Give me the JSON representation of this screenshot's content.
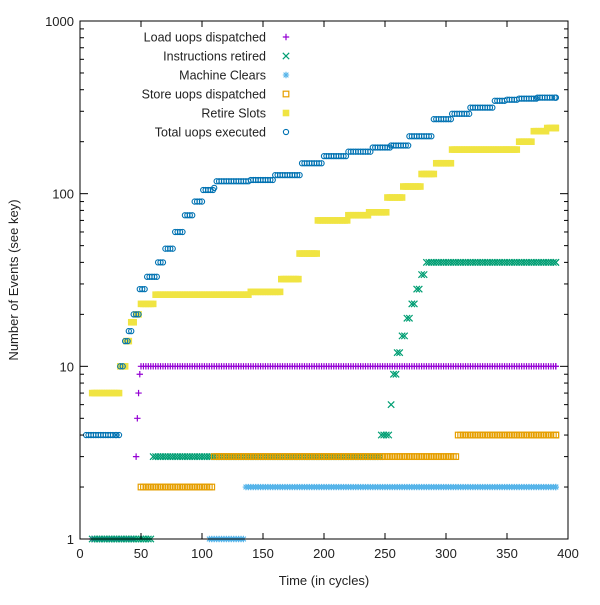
{
  "chart_data": {
    "type": "scatter",
    "title": "",
    "xlabel": "Time (in cycles)",
    "ylabel": "Number of Events (see key)",
    "xlim": [
      0,
      400
    ],
    "ylim": [
      1,
      1000
    ],
    "yscale": "log",
    "grid": false,
    "legend_position": "top-left",
    "xticks": [
      0,
      50,
      100,
      150,
      200,
      250,
      300,
      350,
      400
    ],
    "yticks": [
      1,
      10,
      100,
      1000
    ],
    "series": [
      {
        "name": "Load uops dispatched",
        "marker": "plus",
        "color": "#9400d3",
        "steps": [
          [
            10,
            1
          ],
          [
            46,
            3
          ],
          [
            47,
            5
          ],
          [
            48,
            7
          ],
          [
            49,
            9
          ],
          [
            50,
            10
          ],
          [
            390,
            10
          ]
        ]
      },
      {
        "name": "Instructions retired",
        "marker": "cross",
        "color": "#009e73",
        "steps": [
          [
            10,
            1
          ],
          [
            60,
            3
          ],
          [
            247,
            4
          ],
          [
            255,
            6
          ],
          [
            257,
            9
          ],
          [
            260,
            12
          ],
          [
            264,
            15
          ],
          [
            268,
            19
          ],
          [
            272,
            23
          ],
          [
            276,
            28
          ],
          [
            280,
            34
          ],
          [
            284,
            40
          ],
          [
            390,
            40
          ]
        ]
      },
      {
        "name": "Machine Clears",
        "marker": "star",
        "color": "#56b4e9",
        "steps": [
          [
            106,
            1
          ],
          [
            136,
            2
          ],
          [
            390,
            2
          ]
        ]
      },
      {
        "name": "Store uops dispatched",
        "marker": "square-open",
        "color": "#e69f00",
        "steps": [
          [
            50,
            2
          ],
          [
            110,
            3
          ],
          [
            310,
            4
          ],
          [
            390,
            4
          ]
        ]
      },
      {
        "name": "Retire Slots",
        "marker": "square-filled",
        "color": "#f0e442",
        "steps": [
          [
            10,
            7
          ],
          [
            33,
            10
          ],
          [
            38,
            14
          ],
          [
            42,
            18
          ],
          [
            46,
            20
          ],
          [
            50,
            23
          ],
          [
            62,
            26
          ],
          [
            140,
            27
          ],
          [
            165,
            32
          ],
          [
            180,
            45
          ],
          [
            195,
            70
          ],
          [
            220,
            75
          ],
          [
            237,
            78
          ],
          [
            252,
            95
          ],
          [
            265,
            110
          ],
          [
            280,
            130
          ],
          [
            292,
            150
          ],
          [
            305,
            180
          ],
          [
            350,
            180
          ],
          [
            360,
            200
          ],
          [
            372,
            230
          ],
          [
            383,
            240
          ],
          [
            390,
            240
          ]
        ]
      },
      {
        "name": "Total uops executed",
        "marker": "circle-open",
        "color": "#0072b2",
        "steps": [
          [
            5,
            4
          ],
          [
            30,
            4
          ],
          [
            33,
            10
          ],
          [
            37,
            14
          ],
          [
            40,
            16
          ],
          [
            44,
            20
          ],
          [
            49,
            28
          ],
          [
            55,
            33
          ],
          [
            64,
            40
          ],
          [
            70,
            48
          ],
          [
            78,
            60
          ],
          [
            86,
            75
          ],
          [
            94,
            90
          ],
          [
            101,
            105
          ],
          [
            110,
            108
          ],
          [
            112,
            118
          ],
          [
            140,
            120
          ],
          [
            160,
            128
          ],
          [
            182,
            150
          ],
          [
            200,
            165
          ],
          [
            220,
            175
          ],
          [
            240,
            185
          ],
          [
            255,
            190
          ],
          [
            270,
            215
          ],
          [
            290,
            270
          ],
          [
            305,
            290
          ],
          [
            320,
            315
          ],
          [
            340,
            345
          ],
          [
            350,
            350
          ],
          [
            360,
            355
          ],
          [
            375,
            360
          ],
          [
            390,
            360
          ]
        ]
      }
    ]
  }
}
